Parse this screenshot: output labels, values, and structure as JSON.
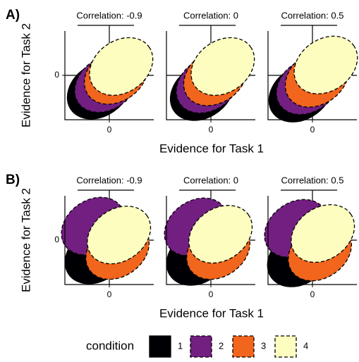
{
  "chart_data": [
    {
      "type": "ellipse",
      "label": "A)",
      "facets": [
        "Correlation: -0.9",
        "Correlation: 0",
        "Correlation: 0.5"
      ],
      "x_label": "Evidence for Task 1",
      "y_label": "Evidence for Task 2",
      "xlim": [
        -3,
        3
      ],
      "ylim": [
        -3,
        3
      ],
      "xticks": [
        0
      ],
      "yticks": [
        0
      ],
      "ellipse": {
        "rx": 2.3,
        "ry": 1.75,
        "angle": 35
      },
      "series": [
        {
          "name": "1",
          "color": "#000004",
          "dashed": false,
          "x": [
            -0.7,
            -0.6,
            -0.8
          ],
          "values": [
            -1.0,
            -1.1,
            -1.2
          ]
        },
        {
          "name": "2",
          "color": "#721f81",
          "dashed": true,
          "x": [
            -0.2,
            -0.2,
            -0.3
          ],
          "values": [
            -0.55,
            -0.6,
            -0.7
          ]
        },
        {
          "name": "3",
          "color": "#f1651d",
          "dashed": true,
          "x": [
            0.45,
            0.3,
            0.3
          ],
          "values": [
            0.0,
            -0.1,
            -0.2
          ]
        },
        {
          "name": "4",
          "color": "#fcfdbf",
          "dashed": true,
          "x": [
            0.8,
            0.8,
            0.9
          ],
          "values": [
            0.6,
            0.6,
            0.7
          ]
        }
      ]
    },
    {
      "type": "ellipse",
      "label": "B)",
      "facets": [
        "Correlation: -0.9",
        "Correlation: 0",
        "Correlation: 0.5"
      ],
      "x_label": "Evidence for Task 1",
      "y_label": "Evidence for Task 2",
      "xlim": [
        -3,
        3
      ],
      "ylim": [
        -3,
        3
      ],
      "xticks": [
        0
      ],
      "yticks": [
        0
      ],
      "ellipse": {
        "rx": 2.3,
        "ry": 1.75,
        "angle": 35
      },
      "series": [
        {
          "name": "1",
          "color": "#000004",
          "dashed": false,
          "x": [
            -0.85,
            -0.85,
            -0.9
          ],
          "values": [
            -1.0,
            -1.1,
            -1.2
          ]
        },
        {
          "name": "2",
          "color": "#721f81",
          "dashed": true,
          "x": [
            -1.1,
            -1.0,
            -1.1
          ],
          "values": [
            0.95,
            0.9,
            0.8
          ]
        },
        {
          "name": "3",
          "color": "#f1651d",
          "dashed": true,
          "x": [
            0.55,
            0.5,
            0.5
          ],
          "values": [
            -0.7,
            -0.7,
            -0.8
          ]
        },
        {
          "name": "4",
          "color": "#fcfdbf",
          "dashed": true,
          "x": [
            0.65,
            0.65,
            0.7
          ],
          "values": [
            0.35,
            0.4,
            0.45
          ]
        }
      ]
    }
  ],
  "legend": {
    "title": "condition"
  }
}
